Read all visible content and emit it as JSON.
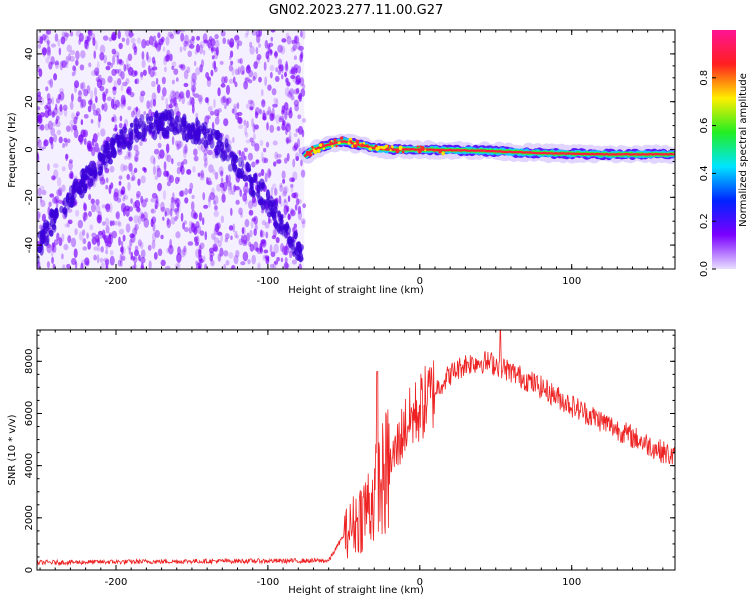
{
  "title": "GN02.2023.277.11.00.G27",
  "colors": {
    "snr_line": "#ee2222",
    "spectro_noise": "#7a00ff",
    "track_core": "#ff1e3c",
    "track_mid": "#33ee33",
    "colormap": [
      "#e8e0ff",
      "#7a00ff",
      "#0022ff",
      "#00e5ff",
      "#22ee22",
      "#ffee00",
      "#ff1f1f",
      "#ff1493"
    ]
  },
  "chart_data": [
    {
      "type": "heatmap",
      "name": "spectrogram",
      "xlabel": "Height of straight line (km)",
      "ylabel": "Frequency (Hz)",
      "xlim": [
        -252,
        168
      ],
      "ylim": [
        -50,
        50
      ],
      "xticks": [
        -200,
        -100,
        0,
        100
      ],
      "yticks": [
        -40,
        -20,
        0,
        20,
        40
      ],
      "colorbar": {
        "label": "Normalized spectral amplitude",
        "range": [
          0,
          1
        ],
        "ticks": [
          0.0,
          0.2,
          0.4,
          0.6,
          0.8
        ]
      },
      "noise_region_x": [
        -252,
        -76
      ],
      "arc_track": {
        "x": [
          -252,
          -240,
          -220,
          -200,
          -180,
          -160,
          -140,
          -120,
          -100,
          -88,
          -78
        ],
        "y": [
          -42,
          -28,
          -12,
          2,
          10,
          11,
          6,
          -6,
          -22,
          -34,
          -44
        ]
      },
      "signal_track": {
        "x": [
          -76,
          -70,
          -60,
          -50,
          -40,
          -30,
          -20,
          0,
          40,
          80,
          120,
          168
        ],
        "y": [
          -3,
          0,
          2,
          3.5,
          2,
          0.5,
          0,
          0,
          -0.5,
          -1.5,
          -2,
          -2
        ]
      }
    },
    {
      "type": "line",
      "name": "snr",
      "xlabel": "Height of straight line (km)",
      "ylabel": "SNR (10 * v/v)",
      "xlim": [
        -252,
        168
      ],
      "ylim": [
        0,
        9200
      ],
      "xticks": [
        -200,
        -100,
        0,
        100
      ],
      "yticks": [
        0,
        2000,
        4000,
        6000,
        8000
      ],
      "envelope": {
        "x": [
          -252,
          -150,
          -60,
          -50,
          -40,
          -30,
          -20,
          -10,
          0,
          10,
          20,
          30,
          40,
          50,
          60,
          80,
          100,
          120,
          140,
          168
        ],
        "y": [
          250,
          300,
          320,
          1300,
          2000,
          2800,
          3900,
          5500,
          6200,
          6900,
          7500,
          7900,
          8000,
          7900,
          7600,
          7000,
          6300,
          5700,
          5100,
          4300
        ]
      },
      "peaks": [
        {
          "x": -28,
          "y": 7600
        },
        {
          "x": 53,
          "y": 9200
        }
      ]
    }
  ]
}
